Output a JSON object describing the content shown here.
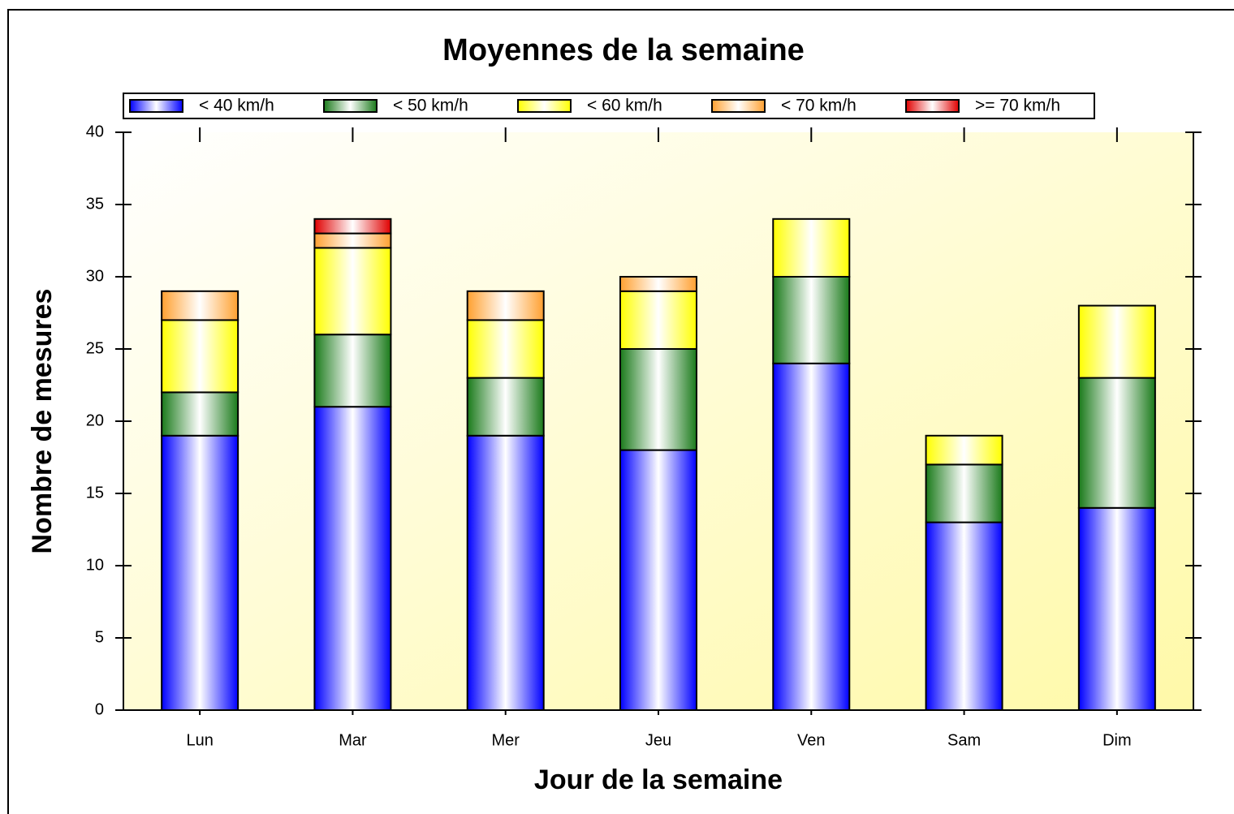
{
  "chart_data": {
    "type": "stacked_bar",
    "title": "Moyennes de la semaine",
    "x_label": "Jour de la semaine",
    "y_label": "Nombre de mesures",
    "categories": [
      "Lun",
      "Mar",
      "Mer",
      "Jeu",
      "Ven",
      "Sam",
      "Dim"
    ],
    "series": [
      {
        "name": "< 40 km/h",
        "color": "#0000ff",
        "values": [
          19,
          21,
          19,
          18,
          24,
          13,
          14
        ]
      },
      {
        "name": "< 50 km/h",
        "color": "#1a7a1a",
        "values": [
          3,
          5,
          4,
          7,
          6,
          4,
          9
        ]
      },
      {
        "name": "< 60 km/h",
        "color": "#ffff00",
        "values": [
          5,
          6,
          4,
          4,
          4,
          2,
          5
        ]
      },
      {
        "name": "< 70 km/h",
        "color": "#ffa030",
        "values": [
          2,
          1,
          2,
          1,
          0,
          0,
          0
        ]
      },
      {
        "name": ">= 70 km/h",
        "color": "#e00000",
        "values": [
          0,
          1,
          0,
          0,
          0,
          0,
          0
        ]
      }
    ],
    "ylim": [
      0,
      40
    ],
    "yticks": [
      0,
      5,
      10,
      15,
      20,
      25,
      30,
      35,
      40
    ],
    "legend": "top"
  }
}
